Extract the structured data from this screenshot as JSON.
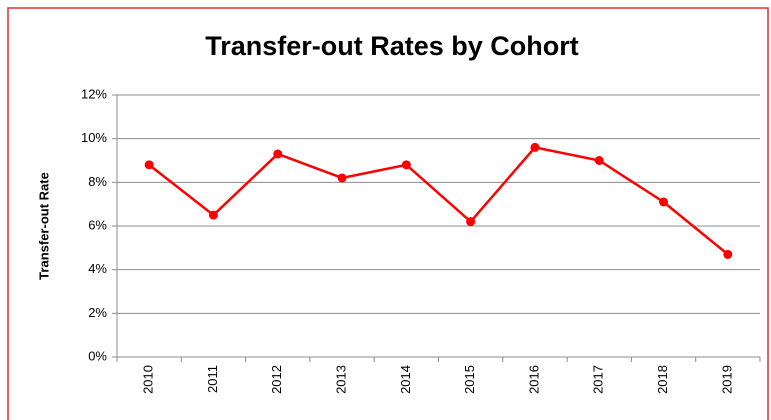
{
  "chart_data": {
    "type": "line",
    "title": "Transfer-out Rates by Cohort",
    "y_label": "Transfer-out Rate",
    "categories": [
      "2010",
      "2011",
      "2012",
      "2013",
      "2014",
      "2015",
      "2016",
      "2017",
      "2018",
      "2019"
    ],
    "series": [
      {
        "name": "Transfer-out Rate",
        "color": "#ff0000",
        "values": [
          8.8,
          6.5,
          9.3,
          8.2,
          8.8,
          6.2,
          9.6,
          9.0,
          7.1,
          4.7
        ]
      }
    ],
    "ylim": [
      0,
      12
    ],
    "yticks": [
      {
        "value": 0,
        "label": "0%"
      },
      {
        "value": 2,
        "label": "2%"
      },
      {
        "value": 4,
        "label": "4%"
      },
      {
        "value": 6,
        "label": "6%"
      },
      {
        "value": 8,
        "label": "8%"
      },
      {
        "value": 10,
        "label": "10%"
      },
      {
        "value": 12,
        "label": "12%"
      }
    ],
    "grid": true
  }
}
